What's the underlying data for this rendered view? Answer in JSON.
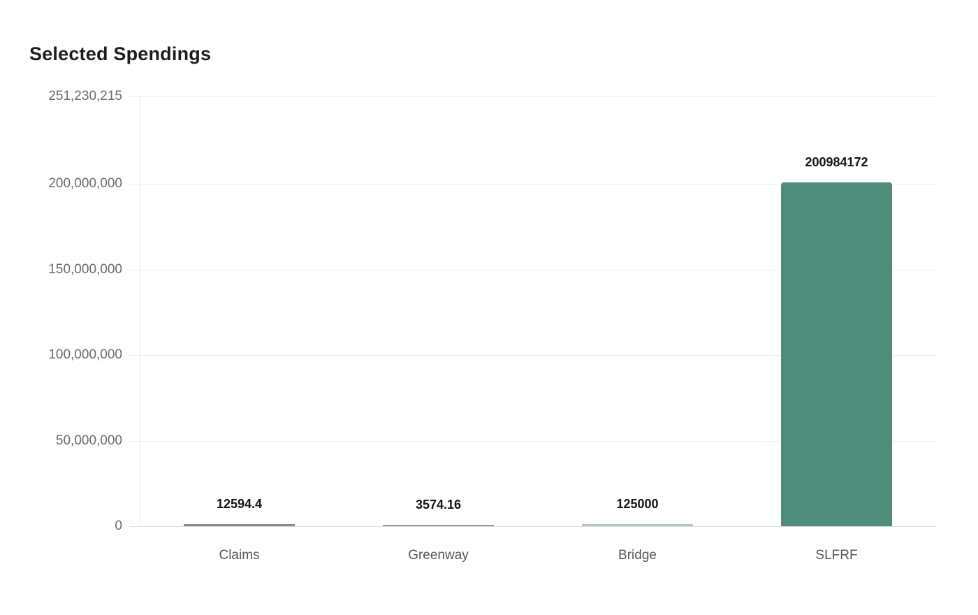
{
  "title": "Selected Spendings",
  "colors": {
    "background": "#ffffff",
    "title": "#1d1d1d",
    "grid": "#ececec",
    "zero_line": "#dedede",
    "axis_line": "#e6e6e6",
    "tick_label": "#6b6b6b",
    "category_label": "#565656",
    "value_label": "#141414",
    "bar_primary": "#4e8d7a",
    "bar_rendered": [
      "#8a8a8a",
      "#9b9b9b",
      "#b6c6c0",
      "#4e8d7a"
    ]
  },
  "chart_data": {
    "type": "bar",
    "title": "Selected Spendings",
    "categories": [
      "Claims",
      "Greenway",
      "Bridge",
      "SLFRF"
    ],
    "values": [
      12594.4,
      3574.16,
      125000,
      200984172
    ],
    "value_labels": [
      "12594.4",
      "3574.16",
      "125000",
      "200984172"
    ],
    "ylim": [
      0,
      251230215
    ],
    "y_ticks": [
      {
        "value": 0,
        "label": "0"
      },
      {
        "value": 50000000,
        "label": "50,000,000"
      },
      {
        "value": 100000000,
        "label": "100,000,000"
      },
      {
        "value": 150000000,
        "label": "150,000,000"
      },
      {
        "value": 200000000,
        "label": "200,000,000"
      },
      {
        "value": 251230215,
        "label": "251,230,215"
      }
    ],
    "xlabel": "",
    "ylabel": "",
    "grid": true,
    "legend": false,
    "bar_color": "#4e8d7a"
  }
}
